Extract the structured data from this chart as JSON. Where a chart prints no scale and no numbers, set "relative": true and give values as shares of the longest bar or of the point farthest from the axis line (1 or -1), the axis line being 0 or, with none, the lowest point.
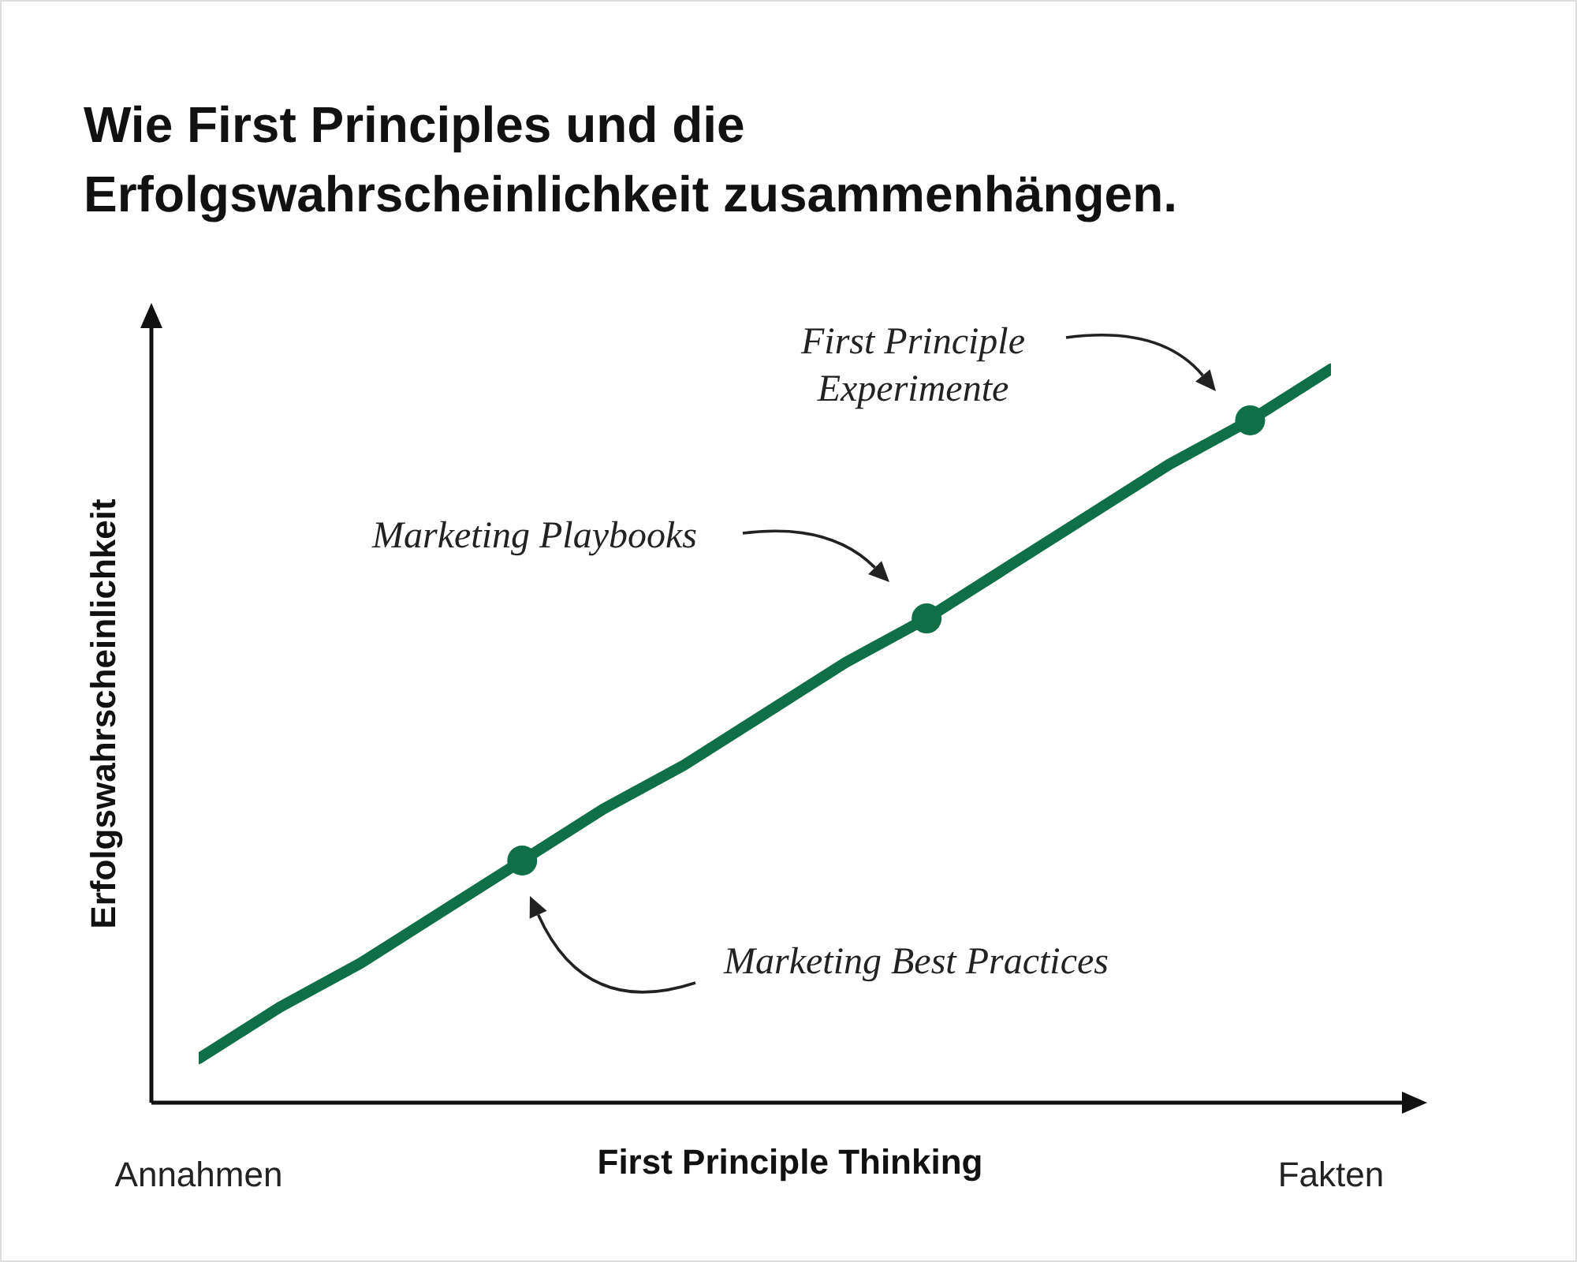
{
  "chart_data": {
    "type": "line",
    "title": "Wie First Principles und die\nErfolgswahrscheinlichkeit zusammenhängen.",
    "xlabel": "First Principle Thinking",
    "ylabel": "Erfolgswahrscheinlichkeit",
    "relative": true,
    "categories": [
      "Annahmen",
      null,
      null,
      null,
      null,
      null,
      null,
      null,
      null,
      null,
      null,
      null,
      null,
      null,
      "Fakten"
    ],
    "series": [
      {
        "color": "#0f7048",
        "values": [
          0.06,
          0.13,
          0.19,
          0.26,
          0.33,
          0.4,
          0.46,
          0.53,
          0.6,
          0.66,
          0.73,
          0.8,
          0.87,
          0.93,
          1.0
        ]
      },
      {
        "type": "scatter",
        "color": "#0f7048",
        "marker": "circle",
        "values": [
          null,
          null,
          null,
          null,
          0.33,
          null,
          null,
          null,
          null,
          0.66,
          null,
          null,
          null,
          0.93,
          null
        ]
      }
    ],
    "annotations": [
      "First Principle\nExperimente",
      "Marketing Playbooks",
      "Marketing Best Practices"
    ]
  }
}
